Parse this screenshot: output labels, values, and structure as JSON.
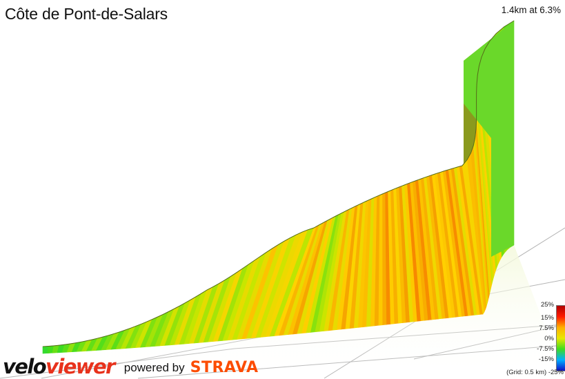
{
  "header": {
    "title": "Côte de Pont-de-Salars",
    "summary": "1.4km at 6.3%"
  },
  "legend": {
    "labels": [
      "25%",
      "15%",
      "7.5%",
      "0%",
      "-7.5%",
      "-15%",
      "-25%"
    ],
    "grid_note": "(Grid: 0.5 km)",
    "colors": [
      "#b00000",
      "#ff1a00",
      "#ffb000",
      "#e8e800",
      "#3fdc1e",
      "#00b0ff",
      "#1010c8"
    ]
  },
  "branding": {
    "logo_part1": "velo",
    "logo_part2": "viewer",
    "powered_by": "powered by",
    "partner": "STRAVA"
  },
  "chart_data": {
    "type": "area",
    "title": "Côte de Pont-de-Salars",
    "subtitle": "1.4km at 6.3%",
    "xlabel": "",
    "ylabel": "",
    "x_unit": "km",
    "grid_spacing_km": 0.5,
    "color_scale": "gradient %",
    "color_scale_range": [
      -25,
      25
    ],
    "segments_gradient_pct": [
      0.5,
      1.0,
      1.5,
      2.0,
      2.5,
      2.5,
      3.0,
      3.5,
      3.0,
      4.0,
      4.5,
      5.0,
      4.5,
      5.5,
      6.0,
      5.0,
      6.0,
      6.5,
      7.0,
      6.0,
      7.5,
      8.0,
      7.0,
      3.0,
      6.5,
      7.5,
      8.0,
      8.5,
      7.5,
      8.0,
      9.0,
      8.5,
      9.0,
      8.0,
      9.5,
      9.0,
      8.5,
      9.0,
      8.0,
      8.5,
      9.0,
      8.0,
      8.5,
      7.5,
      8.0,
      7.0,
      6.5,
      6.0,
      3.0,
      1.5
    ]
  }
}
